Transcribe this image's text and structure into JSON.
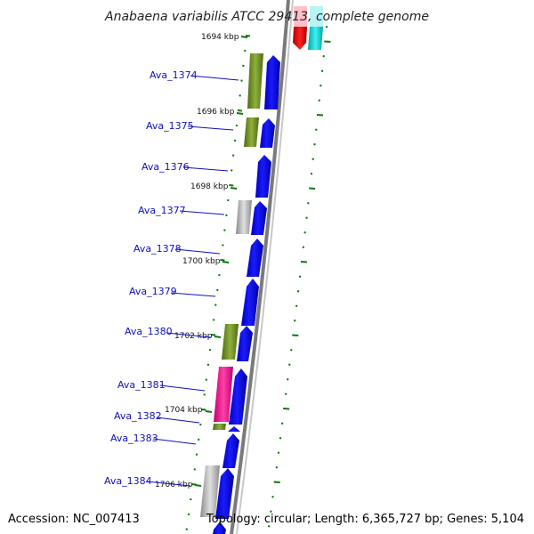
{
  "title": "Anabaena variabilis ATCC 29413, complete genome",
  "footer": {
    "accession": "Accession: NC_007413",
    "summary": "Topology: circular; Length: 6,365,727 bp; Genes: 5,104"
  },
  "colors": {
    "cds": "#0000ee",
    "olive": "#6b8e23",
    "pink": "#ee1493",
    "gray": "#b4b4b4",
    "red": "#ee0000",
    "cyan": "#00d0d0",
    "tick": "#0a7a0a",
    "label": "#1010c0",
    "backbone": "#909090"
  },
  "kbp_markers": [
    {
      "label": "1694 kbp"
    },
    {
      "label": "1696 kbp"
    },
    {
      "label": "1698 kbp"
    },
    {
      "label": "1700 kbp"
    },
    {
      "label": "1702 kbp"
    },
    {
      "label": "1704 kbp"
    },
    {
      "label": "1706 kbp"
    }
  ],
  "gene_labels": [
    {
      "text": "Ava_1374"
    },
    {
      "text": "Ava_1375"
    },
    {
      "text": "Ava_1376"
    },
    {
      "text": "Ava_1377"
    },
    {
      "text": "Ava_1378"
    },
    {
      "text": "Ava_1379"
    },
    {
      "text": "Ava_1380"
    },
    {
      "text": "Ava_1381"
    },
    {
      "text": "Ava_1382"
    },
    {
      "text": "Ava_1383"
    },
    {
      "text": "Ava_1384"
    }
  ]
}
